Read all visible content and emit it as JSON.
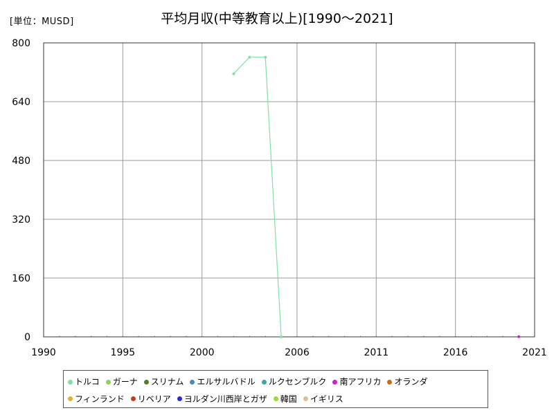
{
  "header": {
    "unit": "[単位：MUSD]",
    "title": "平均月収(中等教育以上)[1990～2021]"
  },
  "chart_data": {
    "type": "line",
    "title": "平均月収(中等教育以上)[1990～2021]",
    "ylabel": "[単位：MUSD]",
    "xlim": [
      1990,
      2021
    ],
    "ylim": [
      0,
      800
    ],
    "xticks": [
      1990,
      1995,
      2000,
      2006,
      2011,
      2016,
      2021
    ],
    "yticks": [
      0,
      160,
      320,
      480,
      640,
      800
    ],
    "grid": true,
    "legend_position": "bottom",
    "series": [
      {
        "name": "トルコ",
        "color": "#7fe0a0",
        "points": [
          [
            2002,
            716
          ],
          [
            2003,
            761
          ],
          [
            2004,
            761
          ],
          [
            2005,
            0
          ]
        ]
      },
      {
        "name": "ガーナ",
        "color": "#8fd45a",
        "points": []
      },
      {
        "name": "スリナム",
        "color": "#5b7a2e",
        "points": []
      },
      {
        "name": "エルサルバドル",
        "color": "#4f88b5",
        "points": []
      },
      {
        "name": "ルクセンブルク",
        "color": "#3fa3a8",
        "points": []
      },
      {
        "name": "南アフリカ",
        "color": "#cc22cc",
        "points": [
          [
            2020,
            0.5
          ]
        ]
      },
      {
        "name": "オランダ",
        "color": "#c86a18",
        "points": []
      },
      {
        "name": "フィンランド",
        "color": "#e8b030",
        "points": []
      },
      {
        "name": "リベリア",
        "color": "#c83a1a",
        "points": []
      },
      {
        "name": "ヨルダン川西岸とガザ",
        "color": "#2a28d8",
        "points": []
      },
      {
        "name": "韓国",
        "color": "#99dd33",
        "points": []
      },
      {
        "name": "イギリス",
        "color": "#d8c090",
        "points": []
      }
    ]
  }
}
